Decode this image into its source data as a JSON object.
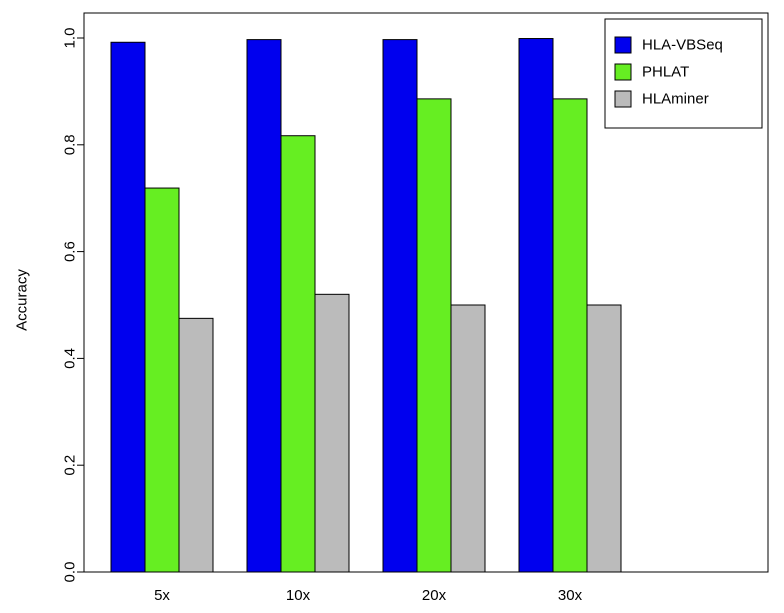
{
  "chart_data": {
    "type": "bar",
    "title": "",
    "xlabel": "",
    "ylabel": "Accuracy",
    "categories": [
      "5x",
      "10x",
      "20x",
      "30x"
    ],
    "series": [
      {
        "name": "HLA-VBSeq",
        "color": "#0000ee",
        "values": [
          0.992,
          0.997,
          0.997,
          0.999
        ]
      },
      {
        "name": "PHLAT",
        "color": "#66ee22",
        "values": [
          0.719,
          0.817,
          0.886,
          0.886
        ]
      },
      {
        "name": "HLAminer",
        "color": "#bbbbbb",
        "values": [
          0.475,
          0.52,
          0.5,
          0.5
        ]
      }
    ],
    "ylim": [
      0,
      1.04
    ],
    "yticks": [
      0.0,
      0.2,
      0.4,
      0.6,
      0.8,
      1.0
    ],
    "ytick_labels": [
      "0.0",
      "0.2",
      "0.4",
      "0.6",
      "0.8",
      "1.0"
    ],
    "grid": false,
    "legend": "top-right"
  }
}
